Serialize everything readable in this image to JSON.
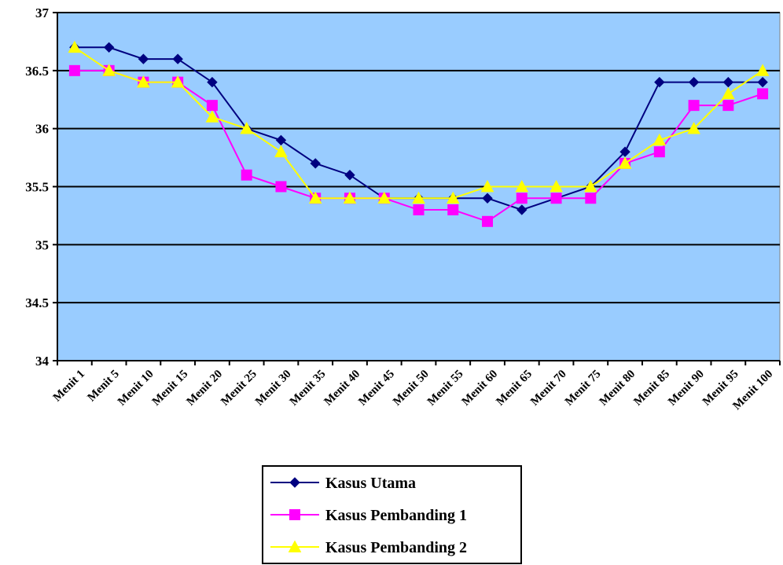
{
  "chart_data": {
    "type": "line",
    "title": "",
    "xlabel": "",
    "ylabel": "",
    "ylim": [
      34,
      37
    ],
    "yticks": [
      34,
      34.5,
      35,
      35.5,
      36,
      36.5,
      37
    ],
    "ytick_labels": [
      "34",
      "34.5",
      "35",
      "35.5",
      "36",
      "36.5",
      "37"
    ],
    "grid": true,
    "plot_background": "#99ccff",
    "legend_position": "bottom-center",
    "categories": [
      "Menit 1",
      "Menit 5",
      "Menit 10",
      "Menit 15",
      "Menit 20",
      "Menit 25",
      "Menit 30",
      "Menit 35",
      "Menit 40",
      "Menit 45",
      "Menit 50",
      "Menit 55",
      "Menit 60",
      "Menit 65",
      "Menit 70",
      "Menit 75",
      "Menit 80",
      "Menit 85",
      "Menit 90",
      "Menit 95",
      "Menit 100"
    ],
    "series": [
      {
        "name": "Kasus Utama",
        "color": "#000080",
        "marker": "diamond",
        "values": [
          36.7,
          36.7,
          36.6,
          36.6,
          36.4,
          36.0,
          35.9,
          35.7,
          35.6,
          35.4,
          35.4,
          35.4,
          35.4,
          35.3,
          35.4,
          35.5,
          35.8,
          36.4,
          36.4,
          36.4,
          36.4
        ]
      },
      {
        "name": "Kasus Pembanding 1",
        "color": "#ff00ff",
        "marker": "square",
        "values": [
          36.5,
          36.5,
          36.4,
          36.4,
          36.2,
          35.6,
          35.5,
          35.4,
          35.4,
          35.4,
          35.3,
          35.3,
          35.2,
          35.4,
          35.4,
          35.4,
          35.7,
          35.8,
          36.2,
          36.2,
          36.3
        ]
      },
      {
        "name": "Kasus Pembanding 2",
        "color": "#ffff00",
        "marker": "triangle",
        "values": [
          36.7,
          36.5,
          36.4,
          36.4,
          36.1,
          36.0,
          35.8,
          35.4,
          35.4,
          35.4,
          35.4,
          35.4,
          35.5,
          35.5,
          35.5,
          35.5,
          35.7,
          35.9,
          36.0,
          36.3,
          36.5
        ]
      }
    ]
  }
}
